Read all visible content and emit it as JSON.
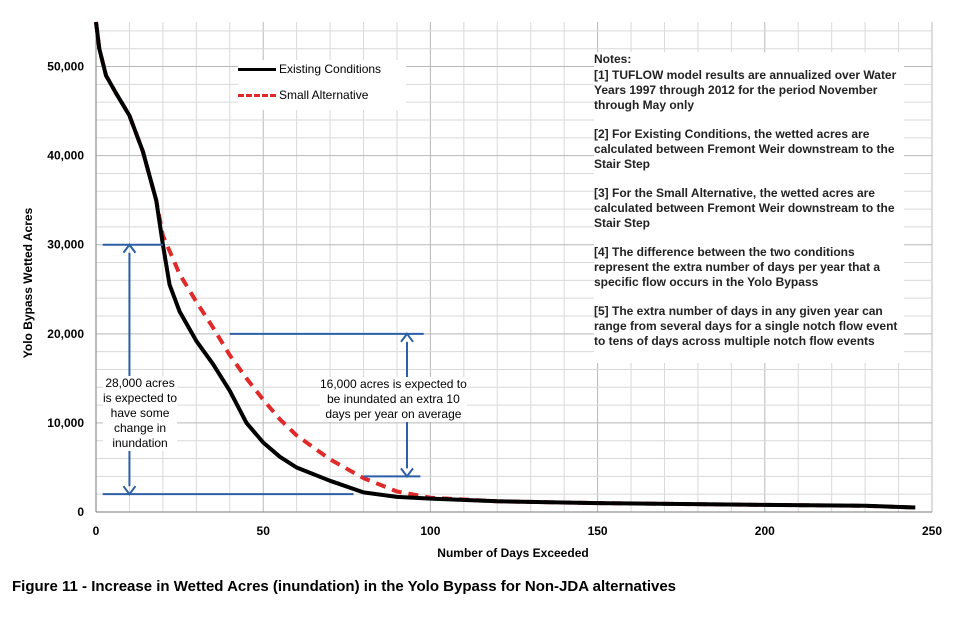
{
  "chart_data": {
    "type": "line",
    "xlabel": "Number of Days Exceeded",
    "ylabel": "Yolo Bypass Wetted Acres",
    "xlim": [
      0,
      250
    ],
    "ylim": [
      0,
      55000
    ],
    "xticks": [
      0,
      50,
      100,
      150,
      200,
      250
    ],
    "xtick_labels": [
      "0",
      "50",
      "100",
      "150",
      "200",
      "250"
    ],
    "yticks": [
      0,
      10000,
      20000,
      30000,
      40000,
      50000
    ],
    "ytick_labels": [
      "0",
      "10,000",
      "20,000",
      "30,000",
      "40,000",
      "50,000"
    ],
    "grid": true,
    "legend_position": "top-left",
    "series": [
      {
        "name": "Existing Conditions",
        "color": "#000000",
        "style": "solid",
        "x": [
          0,
          1,
          3,
          6,
          10,
          14,
          18,
          20,
          22,
          25,
          30,
          35,
          40,
          45,
          50,
          55,
          60,
          70,
          80,
          90,
          100,
          120,
          150,
          200,
          230,
          245
        ],
        "y": [
          55000,
          52000,
          49000,
          47000,
          44500,
          40500,
          35000,
          30000,
          25500,
          22500,
          19200,
          16600,
          13600,
          10000,
          7800,
          6200,
          5000,
          3500,
          2200,
          1700,
          1500,
          1200,
          1000,
          800,
          700,
          500
        ]
      },
      {
        "name": "Small Alternative",
        "color": "#e02a2a",
        "style": "dashed",
        "x": [
          0,
          1,
          3,
          6,
          10,
          14,
          18,
          20,
          22,
          25,
          30,
          35,
          40,
          45,
          50,
          55,
          60,
          70,
          80,
          90,
          100,
          120,
          150,
          200,
          230,
          245
        ],
        "y": [
          55000,
          52000,
          49000,
          47000,
          44500,
          40500,
          35000,
          31000,
          29300,
          26700,
          23600,
          20700,
          17600,
          15000,
          12600,
          10400,
          8600,
          5900,
          3800,
          2300,
          1600,
          1200,
          1000,
          800,
          700,
          500
        ]
      }
    ],
    "annotations": [
      {
        "text": "28,000 acres is expected to have some change in inundation",
        "lines": [
          "28,000 acres",
          "is expected to",
          "have some",
          "change in",
          "inundation"
        ]
      },
      {
        "text": "16,000 acres is expected to be inundated an extra 10 days per year on average",
        "lines": [
          "16,000 acres is expected to",
          "be inundated an extra 10",
          "days per year on average"
        ]
      }
    ]
  },
  "notes": {
    "title": "Notes:",
    "items": [
      "[1] TUFLOW model results are annualized over Water Years 1997 through 2012 for the period November through May only",
      "[2] For Existing Conditions, the wetted acres are calculated between Fremont Weir downstream to the Stair Step",
      "[3] For the Small Alternative, the wetted acres are calculated between Fremont Weir downstream to the Stair Step",
      "[4] The difference between the two conditions represent the extra number of days per year that a specific flow occurs in the Yolo Bypass",
      "[5] The extra number of days in any given year can range from several days for a single notch flow event to tens of days across multiple notch flow events"
    ]
  },
  "caption": "Figure 11 - Increase in Wetted Acres (inundation) in the Yolo Bypass for Non-JDA alternatives"
}
